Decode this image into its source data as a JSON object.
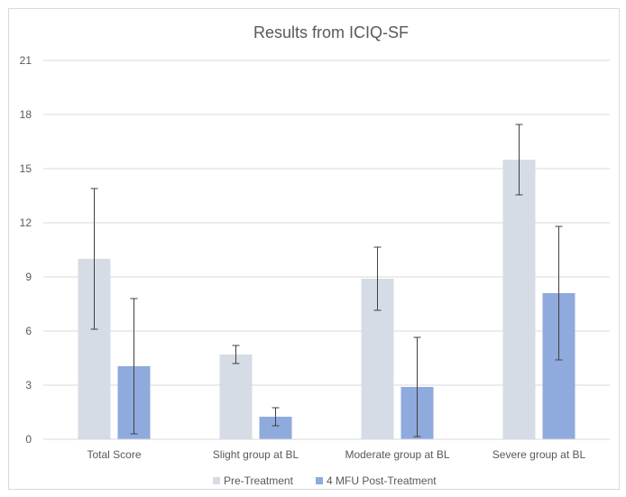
{
  "chart_data": {
    "type": "bar",
    "title": "Results from ICIQ-SF",
    "categories": [
      "Total Score",
      "Slight group at BL",
      "Moderate group at BL",
      "Severe group at BL"
    ],
    "series": [
      {
        "name": "Pre-Treatment",
        "color": "#d6dce5",
        "values": [
          10.0,
          4.7,
          8.9,
          15.5
        ],
        "error": [
          3.9,
          0.5,
          1.75,
          1.95
        ]
      },
      {
        "name": "4 MFU Post-Treatment",
        "color": "#8faadc",
        "values": [
          4.05,
          1.25,
          2.9,
          8.1
        ],
        "error": [
          3.75,
          0.5,
          2.75,
          3.7
        ]
      }
    ],
    "ylim": [
      0,
      21
    ],
    "yticks": [
      0,
      3,
      6,
      9,
      12,
      15,
      18,
      21
    ],
    "grid": true,
    "legend": "bottom"
  }
}
